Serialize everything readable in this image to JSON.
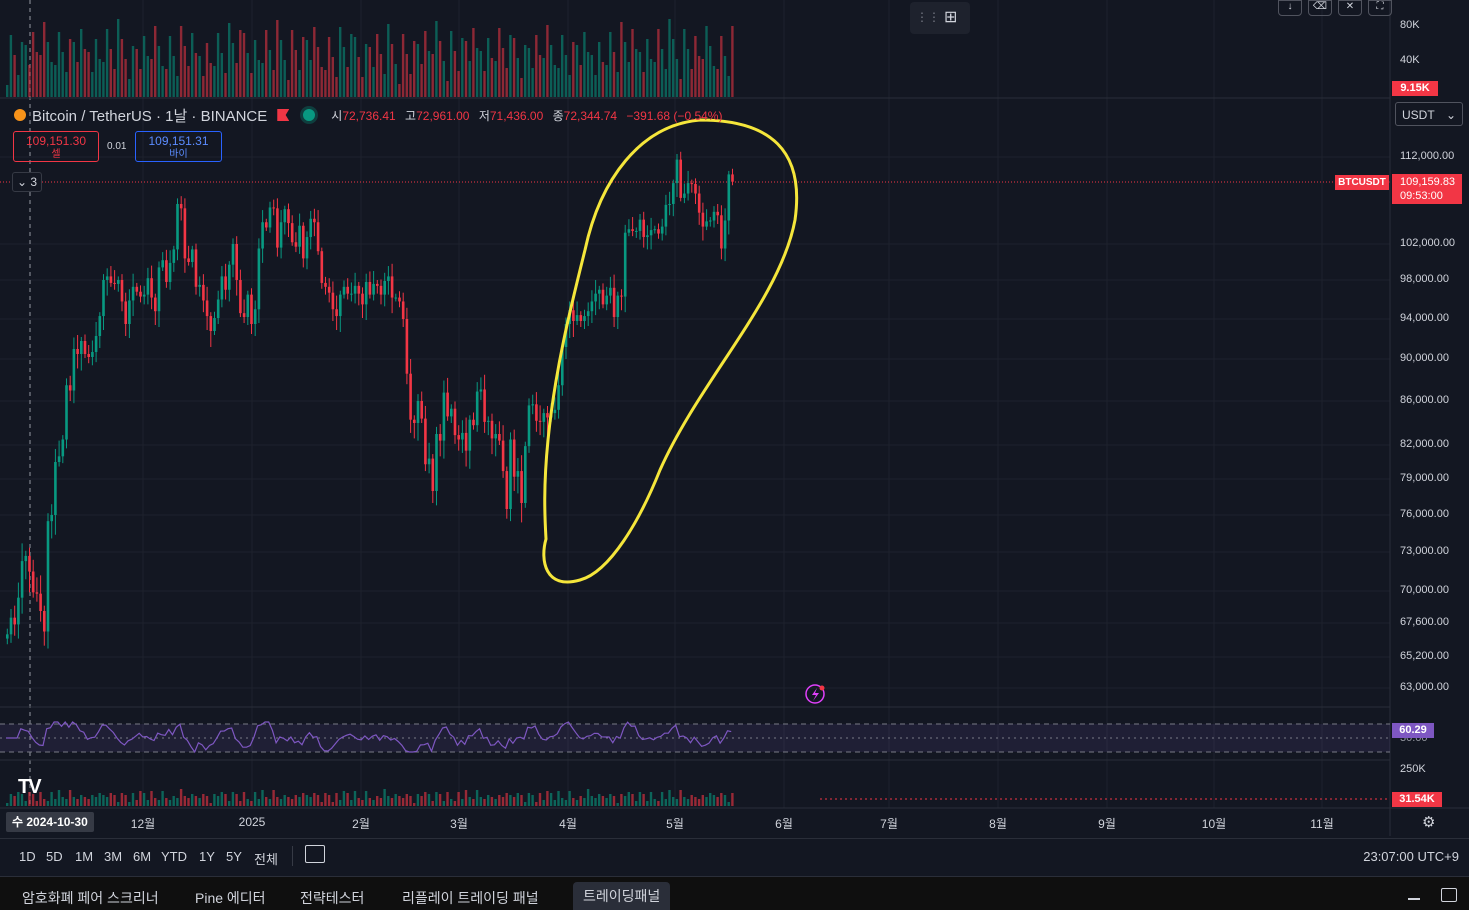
{
  "legend": {
    "symbol": "Bitcoin / TetherUS · 1날 · BINANCE",
    "open_label": "시",
    "open": "72,736.41",
    "high_label": "고",
    "high": "72,961.00",
    "low_label": "저",
    "low": "71,436.00",
    "close_label": "종",
    "close": "72,344.74",
    "change": "−391.68 (−0.54%)"
  },
  "trade": {
    "sell_price": "109,151.30",
    "sell_label": "셀",
    "spread": "0.01",
    "buy_price": "109,151.31",
    "buy_label": "바이"
  },
  "collapse_count": "3",
  "currency": "USDT",
  "volume_axis": {
    "ticks": [
      "80K",
      "40K"
    ],
    "current": "9.15K"
  },
  "price_axis": {
    "ticks": [
      "112,000.00",
      "102,000.00",
      "98,000.00",
      "94,000.00",
      "90,000.00",
      "86,000.00",
      "82,000.00",
      "79,000.00",
      "76,000.00",
      "73,000.00",
      "70,000.00",
      "67,600.00",
      "65,200.00",
      "63,000.00"
    ],
    "symbol_tag": "BTCUSDT",
    "last_price": "109,159.83",
    "countdown": "09:53:00"
  },
  "rsi": {
    "value": "60.29",
    "level": "30.00"
  },
  "lower_volume": {
    "tick": "250K",
    "current": "31.54K"
  },
  "time_axis": {
    "cursor": "수 2024-10-30",
    "labels": [
      "12월",
      "2025",
      "2월",
      "3월",
      "4월",
      "5월",
      "6월",
      "7월",
      "8월",
      "9월",
      "10월",
      "11월"
    ]
  },
  "timeframes": [
    "1D",
    "5D",
    "1M",
    "3M",
    "6M",
    "YTD",
    "1Y",
    "5Y",
    "전체"
  ],
  "clock": "23:07:00 UTC+9",
  "bottom_tabs": [
    "암호화폐 페어 스크리너",
    "Pine 에디터",
    "전략테스터",
    "리플레이 트레이딩 패널",
    "트레이딩패널"
  ],
  "colors": {
    "up": "#089981",
    "down": "#f23645",
    "annotation": "#f5e63b",
    "rsi": "#7e57c2",
    "background": "#131722"
  },
  "icons": [
    "settings-icon",
    "replay-icon",
    "download-icon",
    "trash-icon",
    "fullscreen-icon",
    "layout-icon",
    "lightning-icon",
    "tradingview-logo"
  ],
  "chart_data": {
    "type": "candlestick",
    "symbol": "BTCUSDT",
    "ylim": [
      61000,
      115000
    ],
    "closes": [
      66800,
      68000,
      67500,
      69500,
      72300,
      72700,
      71500,
      69900,
      69800,
      68500,
      67000,
      75500,
      76000,
      80500,
      81000,
      82500,
      87500,
      87000,
      91000,
      90500,
      91800,
      90500,
      90200,
      90700,
      92300,
      94300,
      98000,
      98400,
      97700,
      97600,
      98000,
      95800,
      93500,
      95900,
      97300,
      96800,
      96300,
      96500,
      98200,
      96200,
      94800,
      99400,
      100200,
      97800,
      99900,
      101400,
      106600,
      106100,
      100400,
      100000,
      101400,
      97300,
      97500,
      95900,
      94300,
      92800,
      94100,
      96000,
      98400,
      97000,
      99700,
      102000,
      98000,
      94600,
      94200,
      96500,
      93500,
      95000,
      101500,
      104500,
      103900,
      106200,
      106100,
      101600,
      104500,
      106000,
      104400,
      102200,
      101700,
      104100,
      100400,
      102800,
      104900,
      104500,
      101200,
      97700,
      97300,
      96700,
      95000,
      94300,
      96500,
      97300,
      96600,
      96600,
      97400,
      96600,
      95500,
      97800,
      96500,
      97600,
      97400,
      96500,
      97900,
      98400,
      96200,
      96200,
      95800,
      94000,
      88600,
      84300,
      84000,
      86000,
      84400,
      80300,
      80800,
      78000,
      83000,
      82400,
      86800,
      84600,
      85300,
      82900,
      82500,
      83100,
      81500,
      84300,
      83800,
      86900,
      87100,
      84100,
      84200,
      82600,
      83000,
      82400,
      79700,
      76500,
      82500,
      79200,
      79700,
      77000,
      81900,
      85600,
      85700,
      84200,
      84100,
      84900,
      84500,
      84900,
      85200,
      87500,
      91200,
      93500,
      94900,
      93800,
      94400,
      93800,
      94300,
      94800,
      95800,
      96600,
      97000,
      95500,
      96400,
      97200,
      94200,
      96400,
      96300,
      103300,
      103700,
      103500,
      103500,
      104800,
      102800,
      103000,
      103600,
      103700,
      103200,
      104000,
      106500,
      106600,
      109000,
      111700,
      107300,
      107800,
      109000,
      108900,
      107800,
      105600,
      104000,
      104600,
      104700,
      105700,
      105300,
      101500,
      104700,
      110000,
      109160
    ],
    "volume_axis_ticks": [
      80000,
      40000
    ],
    "rsi_last": 60.29
  }
}
